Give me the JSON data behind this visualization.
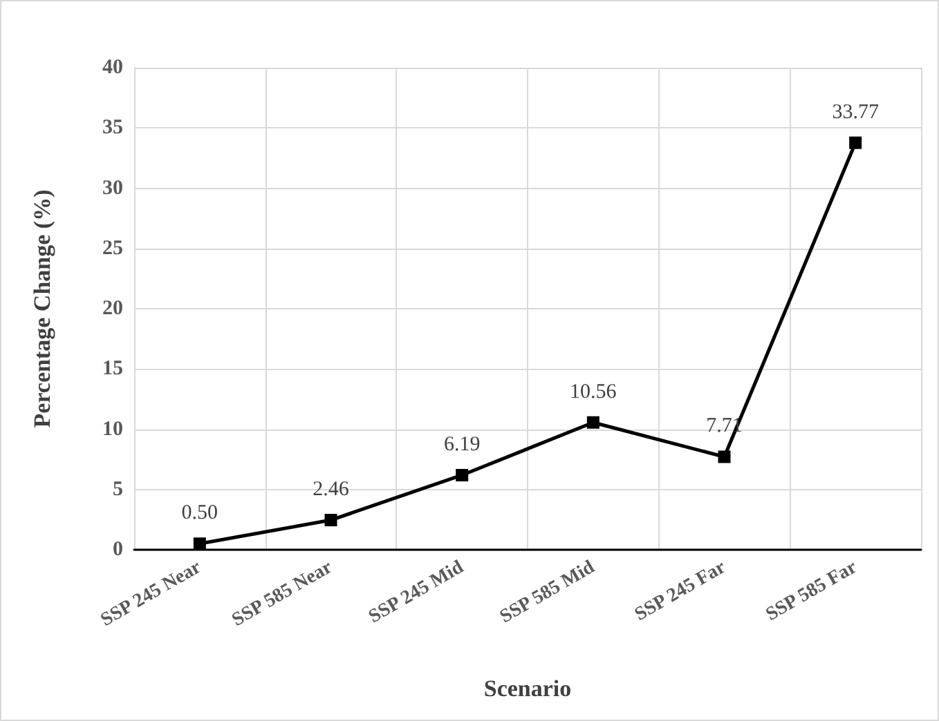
{
  "chart_data": {
    "type": "line",
    "xlabel": "Scenario",
    "ylabel": "Percentage Change (%)",
    "categories": [
      "SSP 245 Near",
      "SSP 585 Near",
      "SSP 245 Mid",
      "SSP 585 Mid",
      "SSP 245 Far",
      "SSP 585 Far"
    ],
    "series": [
      {
        "color": "#000000",
        "values": [
          0.5,
          2.46,
          6.19,
          10.56,
          7.71,
          33.77
        ],
        "value_labels": [
          "0.50",
          "2.46",
          "6.19",
          "10.56",
          "7.71",
          "33.77"
        ]
      }
    ],
    "ylim": [
      0,
      40
    ],
    "yticks": [
      0,
      5,
      10,
      15,
      20,
      25,
      30,
      35,
      40
    ],
    "grid": true,
    "marker": "square",
    "line_style": "solid"
  }
}
